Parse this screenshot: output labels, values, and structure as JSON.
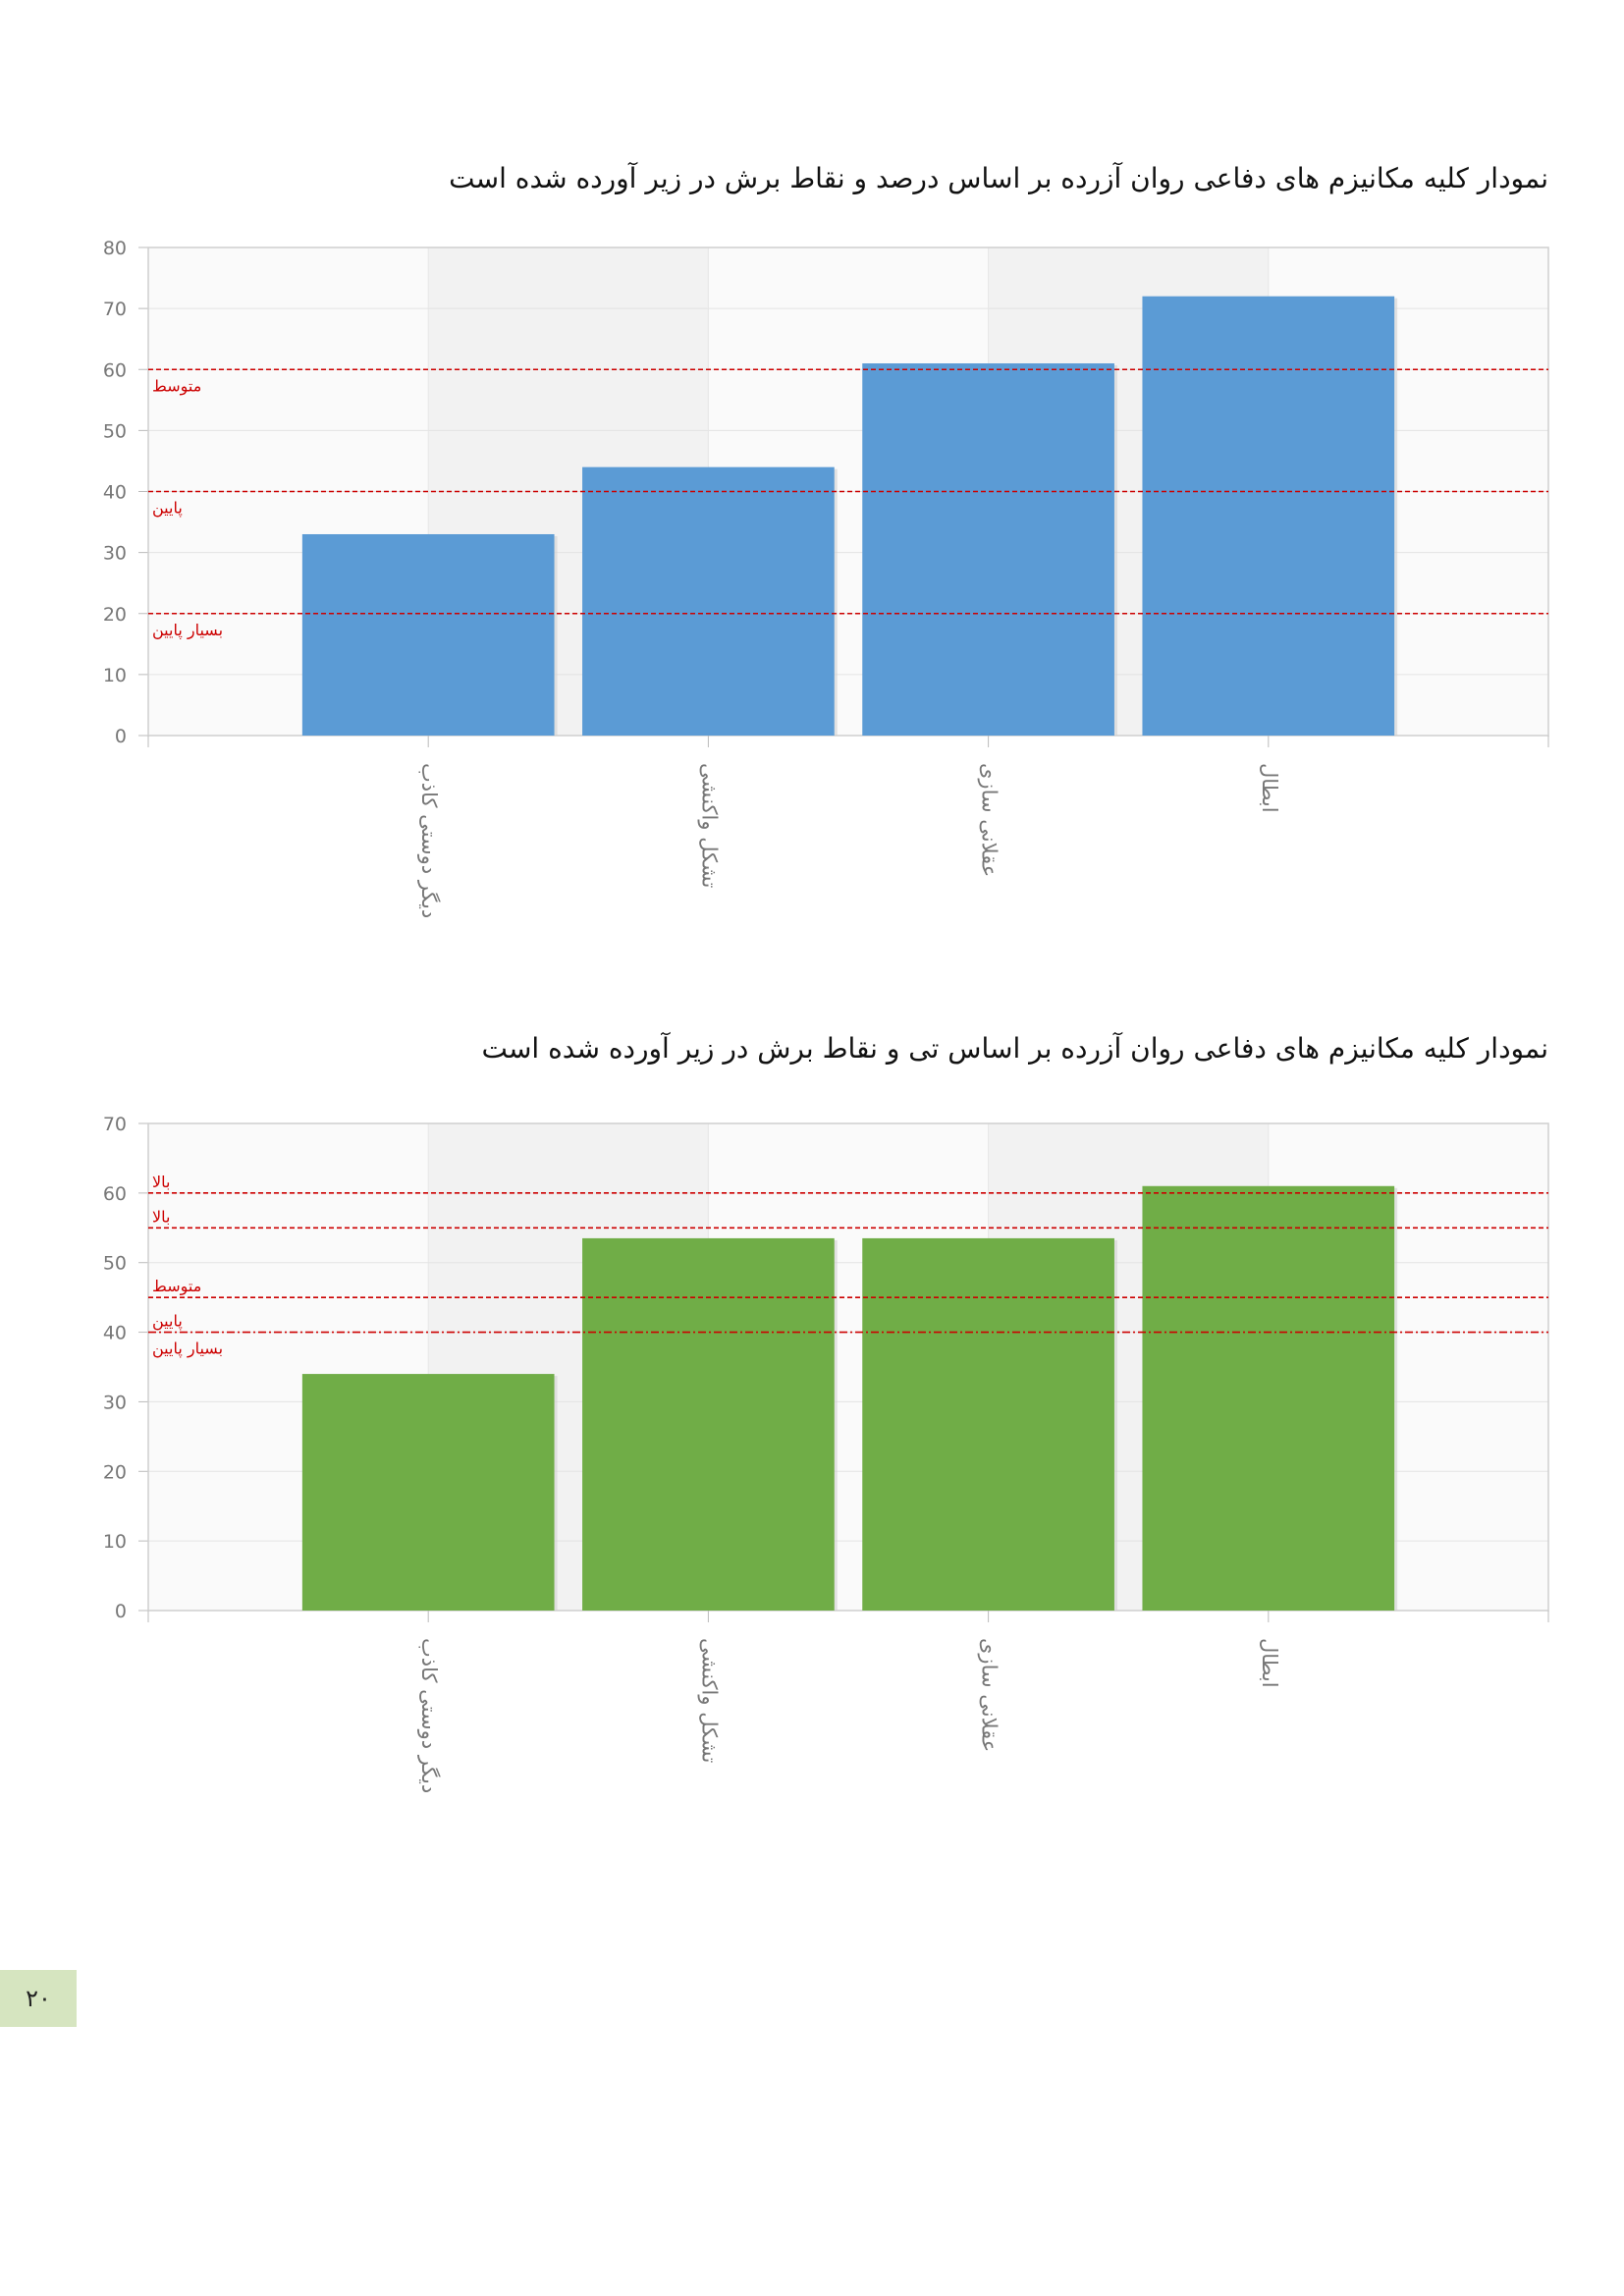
{
  "page": {
    "number": "۲۰"
  },
  "chart_data": [
    {
      "type": "bar",
      "title": "نمودار کلیه مکانیزم های دفاعی روان آزرده بر اساس درصد و نقاط برش در زیر آورده شده است",
      "categories": [
        "دیگر دوستی کاذب",
        "تشکل واکنشی",
        "عقلانی سازی",
        "ابطال"
      ],
      "values": [
        33,
        44,
        61,
        72
      ],
      "ylim": [
        0,
        80
      ],
      "yticks": [
        0,
        10,
        20,
        30,
        40,
        50,
        60,
        70,
        80
      ],
      "grid": true,
      "bar_color": "#5b9bd5",
      "reference_lines": [
        {
          "y": 60,
          "label": "متوسط",
          "style": "dashed"
        },
        {
          "y": 40,
          "label": "پایین",
          "style": "dashed"
        },
        {
          "y": 20,
          "label": "بسیار پایین",
          "style": "dashed"
        }
      ],
      "reference_color": "#cc0000"
    },
    {
      "type": "bar",
      "title": "نمودار کلیه مکانیزم های دفاعی روان آزرده بر اساس تی و نقاط برش در زیر آورده شده است",
      "categories": [
        "دیگر دوستی کاذب",
        "تشکل واکنشی",
        "عقلانی سازی",
        "ابطال"
      ],
      "values": [
        34,
        53.5,
        53.5,
        61
      ],
      "ylim": [
        0,
        70
      ],
      "yticks": [
        0,
        10,
        20,
        30,
        40,
        50,
        60,
        70
      ],
      "grid": true,
      "bar_color": "#70ad47",
      "reference_lines": [
        {
          "y": 60,
          "label": "بالا",
          "style": "dashed"
        },
        {
          "y": 55,
          "label": "بالا",
          "style": "dashed"
        },
        {
          "y": 45,
          "label": "متوسط",
          "style": "dashed"
        },
        {
          "y": 40,
          "label": "پایین",
          "style": "dashdot"
        }
      ],
      "extra_labels": [
        {
          "y": 40,
          "label": "بسیار پایین"
        }
      ],
      "reference_color": "#cc0000"
    }
  ]
}
